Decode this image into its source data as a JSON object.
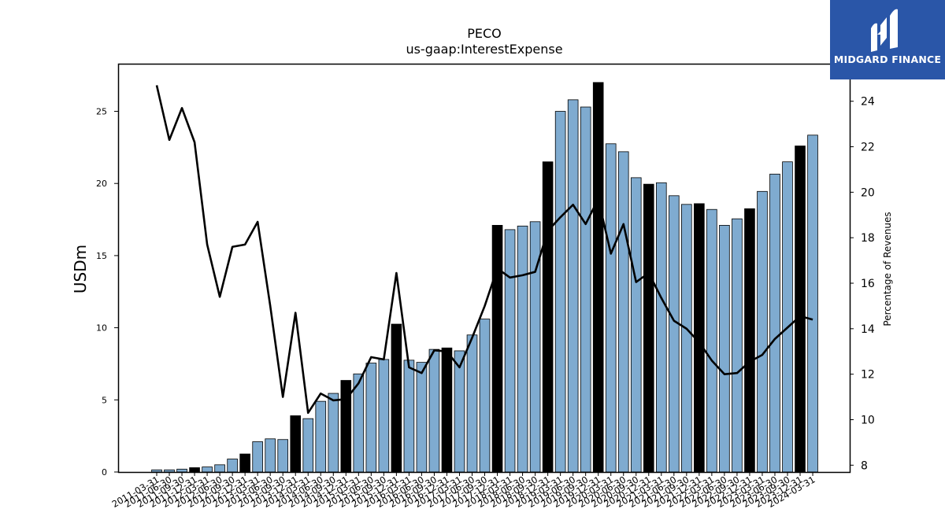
{
  "chart_data": {
    "type": "bar",
    "title": "PECO",
    "subtitle": "us-gaap:InterestExpense",
    "ylabel": "USDm",
    "y2label": "Percentage of Revenues",
    "ylim": [
      0,
      28.3
    ],
    "y2lim": [
      7.7,
      25.65
    ],
    "yticks": [
      0,
      5,
      10,
      15,
      20,
      25
    ],
    "y2ticks": [
      8,
      10,
      12,
      14,
      16,
      18,
      20,
      22,
      24
    ],
    "categories": [
      "2011-03-31",
      "2011-06-30",
      "2011-09-30",
      "2011-12-31",
      "2012-03-31",
      "2012-06-30",
      "2012-09-30",
      "2012-12-31",
      "2013-03-31",
      "2013-06-30",
      "2013-09-30",
      "2013-12-31",
      "2014-03-31",
      "2014-06-30",
      "2014-09-30",
      "2014-12-31",
      "2015-03-31",
      "2015-06-30",
      "2015-09-30",
      "2015-12-31",
      "2016-03-31",
      "2016-06-30",
      "2016-09-30",
      "2016-12-31",
      "2017-03-31",
      "2017-06-30",
      "2017-09-30",
      "2017-12-31",
      "2018-03-31",
      "2018-06-30",
      "2018-09-30",
      "2018-12-31",
      "2019-03-31",
      "2019-06-30",
      "2019-09-30",
      "2019-12-31",
      "2020-03-31",
      "2020-06-30",
      "2020-09-30",
      "2020-12-31",
      "2021-03-31",
      "2021-06-30",
      "2021-09-30",
      "2021-12-31",
      "2022-03-31",
      "2022-06-30",
      "2022-09-30",
      "2022-12-31",
      "2023-03-31",
      "2023-06-30",
      "2023-09-30",
      "2023-12-31",
      "2024-03-31"
    ],
    "series": [
      {
        "kind": "bar",
        "axis": "left",
        "values": [
          0.15,
          0.15,
          0.2,
          0.3,
          0.35,
          0.5,
          0.9,
          1.25,
          2.1,
          2.3,
          2.25,
          3.9,
          3.7,
          4.9,
          5.45,
          6.35,
          6.8,
          7.55,
          7.8,
          10.25,
          7.75,
          7.6,
          8.5,
          8.6,
          8.4,
          9.5,
          10.6,
          17.1,
          16.8,
          17.05,
          17.35,
          21.5,
          25.0,
          25.8,
          25.3,
          27.0,
          22.75,
          22.2,
          20.4,
          19.95,
          20.05,
          19.15,
          18.55,
          18.6,
          18.2,
          17.1,
          17.55,
          18.25,
          19.45,
          20.65,
          21.5,
          22.6,
          23.35
        ],
        "highlight": [
          false,
          false,
          false,
          true,
          false,
          false,
          false,
          true,
          false,
          false,
          false,
          true,
          false,
          false,
          false,
          true,
          false,
          false,
          false,
          true,
          false,
          false,
          false,
          true,
          false,
          false,
          false,
          true,
          false,
          false,
          false,
          true,
          false,
          false,
          false,
          true,
          false,
          false,
          false,
          true,
          false,
          false,
          false,
          true,
          false,
          false,
          false,
          true,
          false,
          false,
          false,
          true,
          false
        ]
      },
      {
        "kind": "line",
        "axis": "right",
        "values": [
          24.7,
          22.3,
          23.7,
          22.2,
          17.7,
          15.4,
          17.6,
          17.7,
          18.7,
          15.0,
          11.0,
          14.7,
          10.3,
          11.15,
          10.85,
          10.9,
          11.6,
          12.75,
          12.65,
          16.45,
          12.3,
          12.05,
          13.05,
          13.0,
          12.3,
          13.6,
          15.0,
          16.65,
          16.25,
          16.35,
          16.5,
          18.3,
          18.9,
          19.45,
          18.6,
          19.7,
          17.3,
          18.6,
          16.05,
          16.45,
          15.35,
          14.35,
          14.0,
          13.4,
          12.6,
          12.0,
          12.05,
          12.55,
          12.85,
          13.55,
          14.05,
          14.55,
          14.4
        ]
      }
    ],
    "colors": {
      "bar": "#7fabd0",
      "bar_highlight": "#000000",
      "line": "#000000"
    },
    "grid": false,
    "legend": "none"
  },
  "logo": {
    "text": "MIDGARD FINANCE",
    "icon": "midgard-logo-icon"
  }
}
